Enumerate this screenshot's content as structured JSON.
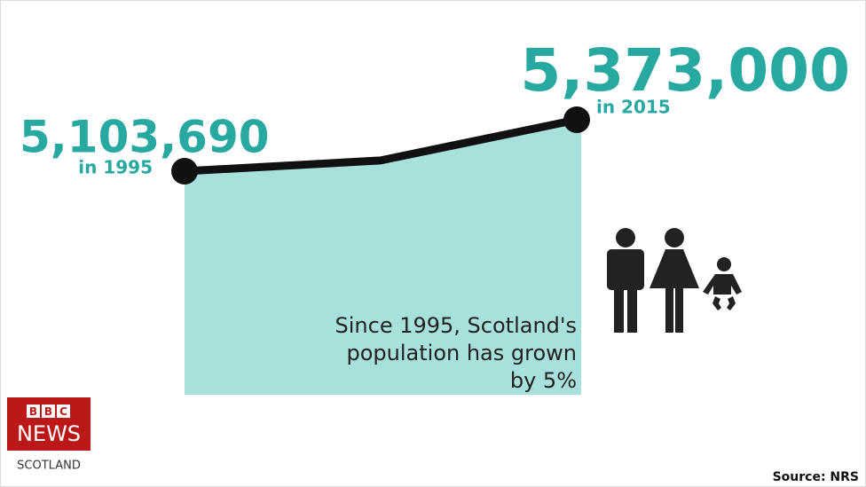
{
  "chart_data": {
    "type": "area",
    "categories": [
      "in 1995",
      null,
      "in 2015"
    ],
    "values": [
      5103690,
      5160000,
      5373000
    ],
    "value_labels": [
      "5,103,690",
      null,
      "5,373,000"
    ],
    "ylim": [
      3933600,
      5907000
    ],
    "fill_color": "#a8e0dc",
    "line_color": "#111111",
    "label_color": "#27a8a0",
    "annotation_lines": [
      "Since 1995, Scotland's",
      "population has grown",
      "by 5%"
    ],
    "source": "Source: NRS"
  },
  "logo": {
    "letters": [
      "B",
      "B",
      "C"
    ],
    "name": "NEWS",
    "region": "SCOTLAND"
  }
}
